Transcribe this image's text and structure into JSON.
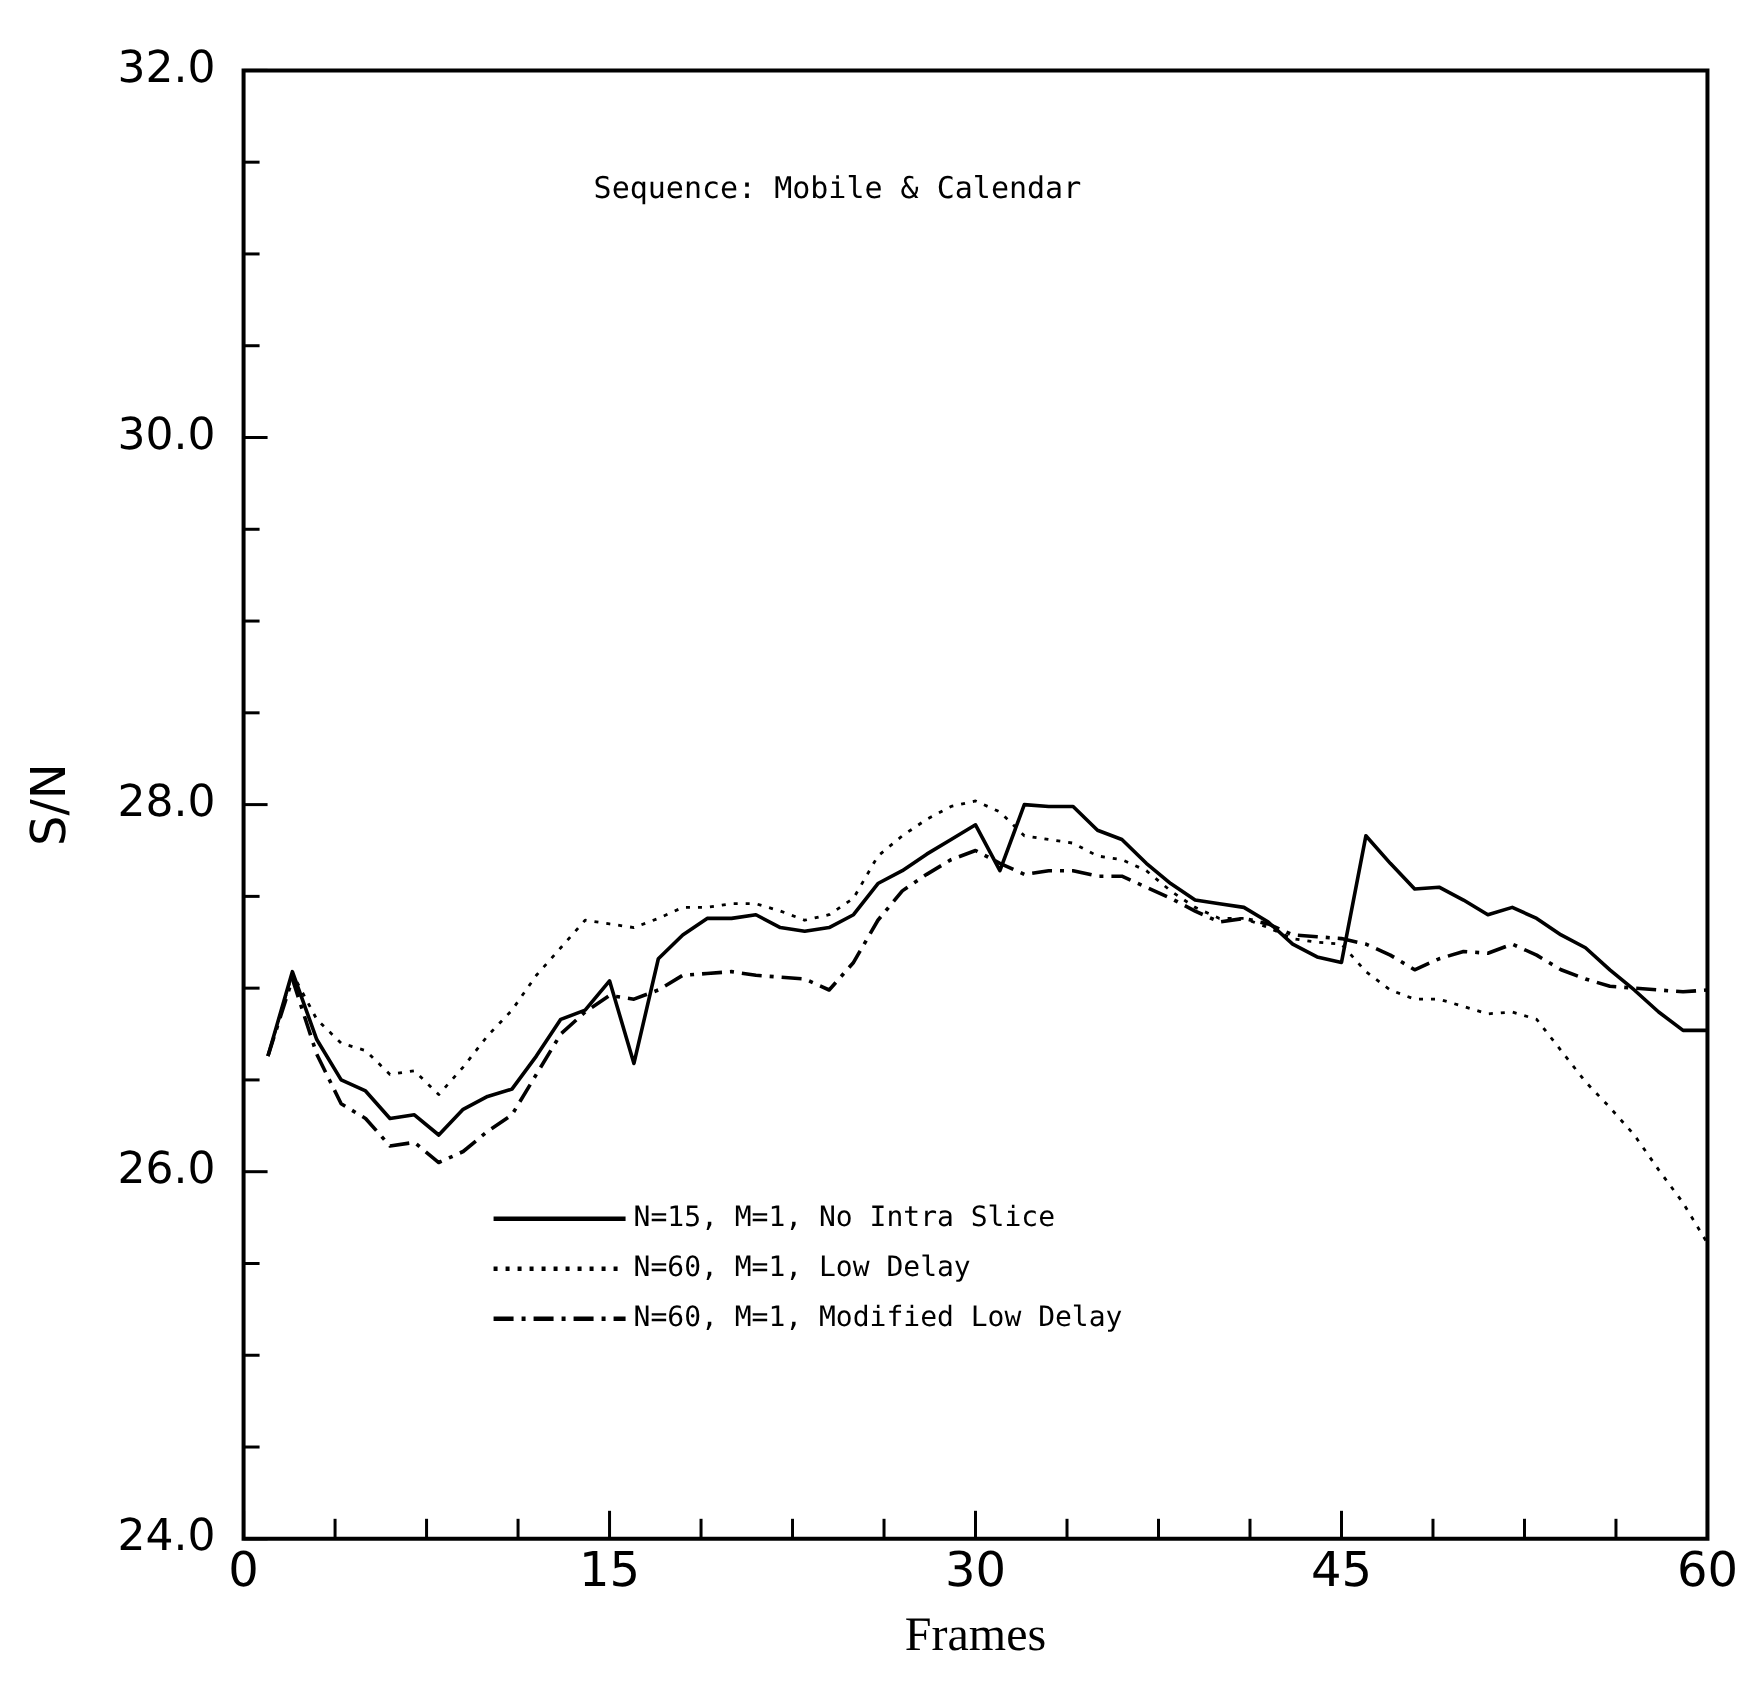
{
  "chart_data": {
    "type": "line",
    "xlabel": "Frames",
    "ylabel": "S/N",
    "annotations": [
      "Sequence: Mobile & Calendar"
    ],
    "x": [
      1,
      2,
      3,
      4,
      5,
      6,
      7,
      8,
      9,
      10,
      11,
      12,
      13,
      14,
      15,
      16,
      17,
      18,
      19,
      20,
      21,
      22,
      23,
      24,
      25,
      26,
      27,
      28,
      29,
      30,
      31,
      32,
      33,
      34,
      35,
      36,
      37,
      38,
      39,
      40,
      41,
      42,
      43,
      44,
      45,
      46,
      47,
      48,
      49,
      50,
      51,
      52,
      53,
      54,
      55,
      56,
      57,
      58,
      59,
      60
    ],
    "xlim": [
      0,
      60
    ],
    "xticks": [
      0,
      {
        "value": 3.75,
        "label": null
      },
      {
        "value": 7.5,
        "label": null
      },
      {
        "value": 11.25,
        "label": null
      },
      15,
      {
        "value": 18.75,
        "label": null
      },
      {
        "value": 22.5,
        "label": null
      },
      {
        "value": 26.25,
        "label": null
      },
      30,
      {
        "value": 33.75,
        "label": null
      },
      {
        "value": 37.5,
        "label": null
      },
      {
        "value": 41.25,
        "label": null
      },
      45,
      {
        "value": 48.75,
        "label": null
      },
      {
        "value": 52.5,
        "label": null
      },
      {
        "value": 56.25,
        "label": null
      },
      60
    ],
    "ylim": [
      24,
      32
    ],
    "yticks": [
      {
        "value": 24,
        "label": "24.0"
      },
      {
        "value": 24.5,
        "label": null
      },
      {
        "value": 25,
        "label": null
      },
      {
        "value": 25.5,
        "label": null
      },
      {
        "value": 26,
        "label": "26.0"
      },
      {
        "value": 26.5,
        "label": null
      },
      {
        "value": 27,
        "label": null
      },
      {
        "value": 27.5,
        "label": null
      },
      {
        "value": 28,
        "label": "28.0"
      },
      {
        "value": 28.5,
        "label": null
      },
      {
        "value": 29,
        "label": null
      },
      {
        "value": 29.5,
        "label": null
      },
      {
        "value": 30,
        "label": "30.0"
      },
      {
        "value": 30.5,
        "label": null
      },
      {
        "value": 31,
        "label": null
      },
      {
        "value": 31.5,
        "label": null
      },
      {
        "value": 32,
        "label": "32.0"
      }
    ],
    "legend": "bottom left",
    "marker": "none",
    "series": [
      {
        "name": "N=15, M=1, No Intra Slice",
        "color": "#000000",
        "line_style": "solid",
        "values": [
          26.63,
          27.09,
          26.72,
          26.5,
          26.44,
          26.29,
          26.31,
          26.2,
          26.34,
          26.41,
          26.45,
          26.63,
          26.83,
          26.88,
          27.04,
          26.59,
          27.16,
          27.29,
          27.38,
          27.38,
          27.4,
          27.33,
          27.31,
          27.33,
          27.4,
          27.57,
          27.64,
          27.73,
          27.81,
          27.89,
          27.64,
          28.0,
          27.99,
          27.99,
          27.86,
          27.81,
          27.68,
          27.57,
          27.48,
          27.46,
          27.44,
          27.36,
          27.24,
          27.17,
          27.14,
          27.83,
          27.68,
          27.54,
          27.55,
          27.48,
          27.4,
          27.44,
          27.38,
          27.29,
          27.22,
          27.1,
          26.99,
          26.87,
          26.77,
          26.77
        ]
      },
      {
        "name": "N=60, M=1, Low Delay",
        "color": "#000000",
        "line_style": "dotted",
        "values": [
          26.63,
          27.08,
          26.83,
          26.7,
          26.66,
          26.53,
          26.55,
          26.42,
          26.57,
          26.74,
          26.88,
          27.07,
          27.22,
          27.37,
          27.35,
          27.33,
          27.38,
          27.44,
          27.44,
          27.46,
          27.46,
          27.42,
          27.37,
          27.4,
          27.49,
          27.72,
          27.83,
          27.92,
          27.99,
          28.02,
          27.96,
          27.83,
          27.81,
          27.79,
          27.72,
          27.7,
          27.64,
          27.53,
          27.44,
          27.38,
          27.38,
          27.33,
          27.27,
          27.25,
          27.24,
          27.09,
          26.99,
          26.94,
          26.94,
          26.9,
          26.86,
          26.87,
          26.83,
          26.66,
          26.49,
          26.35,
          26.2,
          26.01,
          25.83,
          25.61
        ]
      },
      {
        "name": "N=60, M=1, Modified Low Delay",
        "color": "#000000",
        "line_style": "dashed",
        "values": [
          26.63,
          27.05,
          26.64,
          26.37,
          26.29,
          26.14,
          26.16,
          26.05,
          26.11,
          26.22,
          26.31,
          26.53,
          26.75,
          26.87,
          26.96,
          26.94,
          26.99,
          27.07,
          27.08,
          27.09,
          27.07,
          27.06,
          27.05,
          26.99,
          27.14,
          27.37,
          27.53,
          27.62,
          27.7,
          27.75,
          27.68,
          27.62,
          27.64,
          27.64,
          27.61,
          27.61,
          27.55,
          27.49,
          27.42,
          27.36,
          27.38,
          27.35,
          27.29,
          27.28,
          27.27,
          27.24,
          27.18,
          27.1,
          27.16,
          27.2,
          27.19,
          27.24,
          27.18,
          27.1,
          27.05,
          27.01,
          27.0,
          26.99,
          26.98,
          26.99
        ]
      }
    ]
  }
}
